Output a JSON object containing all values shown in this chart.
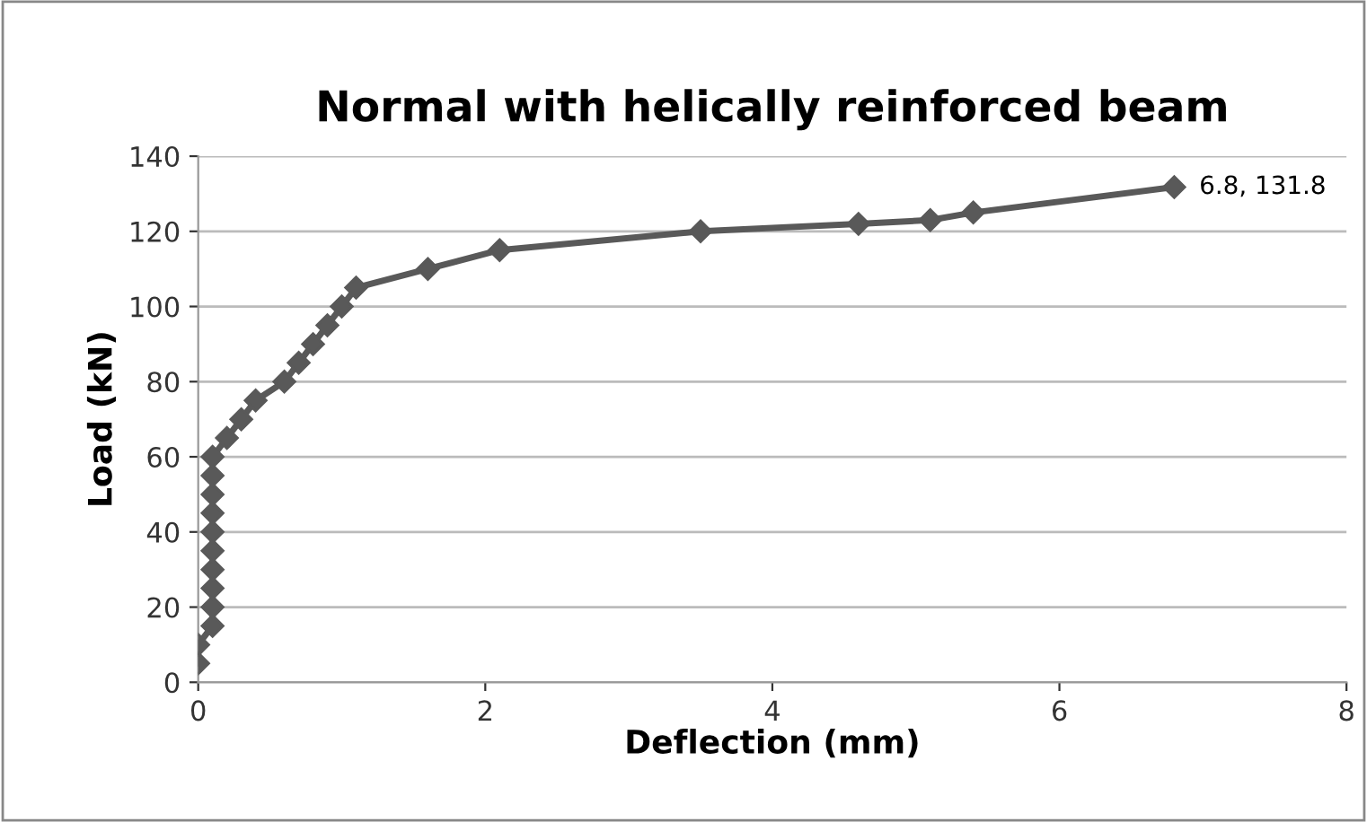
{
  "chart_data": {
    "type": "line",
    "title": "Normal with helically reinforced beam",
    "xlabel": "Deflection (mm)",
    "ylabel": "Load (kN)",
    "x": [
      0,
      0,
      0.1,
      0.1,
      0.1,
      0.1,
      0.1,
      0.1,
      0.1,
      0.1,
      0.1,
      0.1,
      0.2,
      0.3,
      0.4,
      0.6,
      0.7,
      0.8,
      0.9,
      1.0,
      1.1,
      1.6,
      2.1,
      3.5,
      4.6,
      5.1,
      5.4,
      6.8
    ],
    "series": [
      {
        "color": "#595959",
        "values": [
          5,
          10,
          15,
          20,
          25,
          30,
          35,
          40,
          45,
          50,
          55,
          60,
          65,
          70,
          75,
          80,
          85,
          90,
          95,
          100,
          105,
          110,
          115,
          120,
          122,
          123,
          125,
          131.8
        ]
      }
    ],
    "annotations": [
      {
        "text": "6.8, 131.8",
        "x": 6.8,
        "y": 131.8
      }
    ],
    "xlim": [
      0,
      8
    ],
    "xticks": [
      0,
      2,
      4,
      6,
      8
    ],
    "ylim": [
      0,
      140
    ],
    "yticks": [
      0,
      20,
      40,
      60,
      80,
      100,
      120,
      140
    ],
    "grid": "y",
    "legend": false,
    "marker": "diamond",
    "line_style": "solid"
  }
}
